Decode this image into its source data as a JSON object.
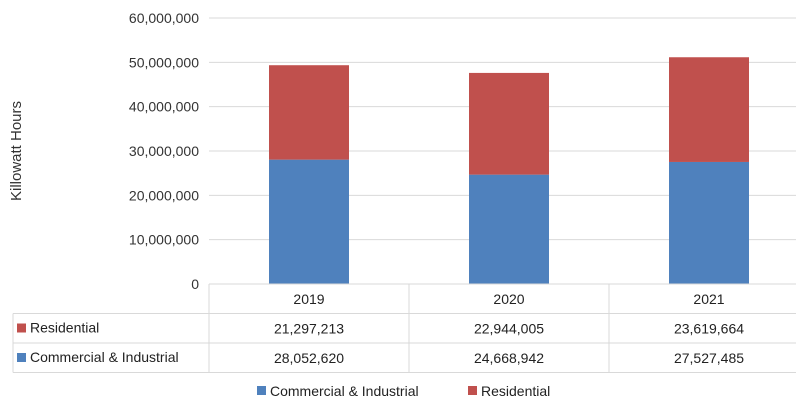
{
  "chart_data": {
    "type": "bar",
    "stacked": true,
    "categories": [
      "2019",
      "2020",
      "2021"
    ],
    "series": [
      {
        "name": "Commercial & Industrial",
        "values": [
          28052620,
          24668942,
          27527485
        ],
        "value_labels": [
          "28,052,620",
          "24,668,942",
          "27,527,485"
        ],
        "color": "#4f81bd"
      },
      {
        "name": "Residential",
        "values": [
          21297213,
          22944005,
          23619664
        ],
        "value_labels": [
          "21,297,213",
          "22,944,005",
          "23,619,664"
        ],
        "color": "#c0504d"
      }
    ],
    "ylabel": "Killowatt Hours",
    "ylim": [
      0,
      60000000
    ],
    "yticks": [
      0,
      10000000,
      20000000,
      30000000,
      40000000,
      50000000,
      60000000
    ],
    "ytick_labels": [
      "0",
      "10,000,000",
      "20,000,000",
      "30,000,000",
      "40,000,000",
      "50,000,000",
      "60,000,000"
    ],
    "grid": true,
    "legend_position": "bottom",
    "data_table": true,
    "table_row_order": [
      "Residential",
      "Commercial & Industrial"
    ]
  }
}
